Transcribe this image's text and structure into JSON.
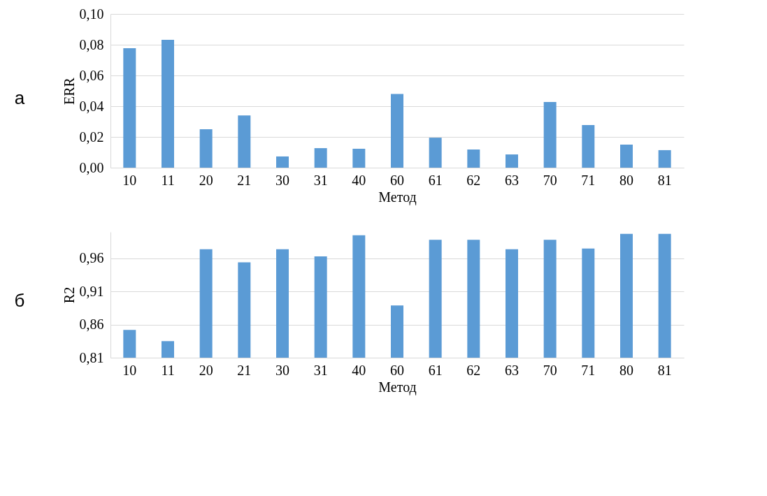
{
  "chart_data": [
    {
      "type": "bar",
      "annotations": [
        "а"
      ],
      "ylabel": "ERR",
      "xlabel": "Метод",
      "categories": [
        "10",
        "11",
        "20",
        "21",
        "30",
        "31",
        "40",
        "60",
        "61",
        "62",
        "63",
        "70",
        "71",
        "80",
        "81"
      ],
      "series": [
        {
          "color": "#5b9bd5",
          "values": [
            0.0777,
            0.0832,
            0.025,
            0.034,
            0.0073,
            0.0127,
            0.0123,
            0.048,
            0.0195,
            0.0118,
            0.0086,
            0.0427,
            0.0277,
            0.015,
            0.0114
          ]
        }
      ],
      "ylim": [
        0,
        0.1
      ],
      "yticks": [
        {
          "value": 0,
          "label": "0,00"
        },
        {
          "value": 0.02,
          "label": "0,02"
        },
        {
          "value": 0.04,
          "label": "0,04"
        },
        {
          "value": 0.06,
          "label": "0,06"
        },
        {
          "value": 0.08,
          "label": "0,08"
        },
        {
          "value": 0.1,
          "label": "0,10"
        }
      ],
      "grid": "y"
    },
    {
      "type": "bar",
      "annotations": [
        "б"
      ],
      "ylabel": "R2",
      "xlabel": "Метод",
      "categories": [
        "10",
        "11",
        "20",
        "21",
        "30",
        "31",
        "40",
        "60",
        "61",
        "62",
        "63",
        "70",
        "71",
        "80",
        "81"
      ],
      "series": [
        {
          "color": "#5b9bd5",
          "values": [
            0.852,
            0.835,
            0.974,
            0.954,
            0.974,
            0.963,
            0.995,
            0.889,
            0.988,
            0.988,
            0.974,
            0.988,
            0.975,
            0.997,
            0.997
          ]
        }
      ],
      "ylim": [
        0.81,
        1.0
      ],
      "yticks": [
        {
          "value": 0.81,
          "label": "0,81"
        },
        {
          "value": 0.86,
          "label": "0,86"
        },
        {
          "value": 0.91,
          "label": "0,91"
        },
        {
          "value": 0.96,
          "label": "0,96"
        }
      ],
      "grid": "y"
    }
  ]
}
